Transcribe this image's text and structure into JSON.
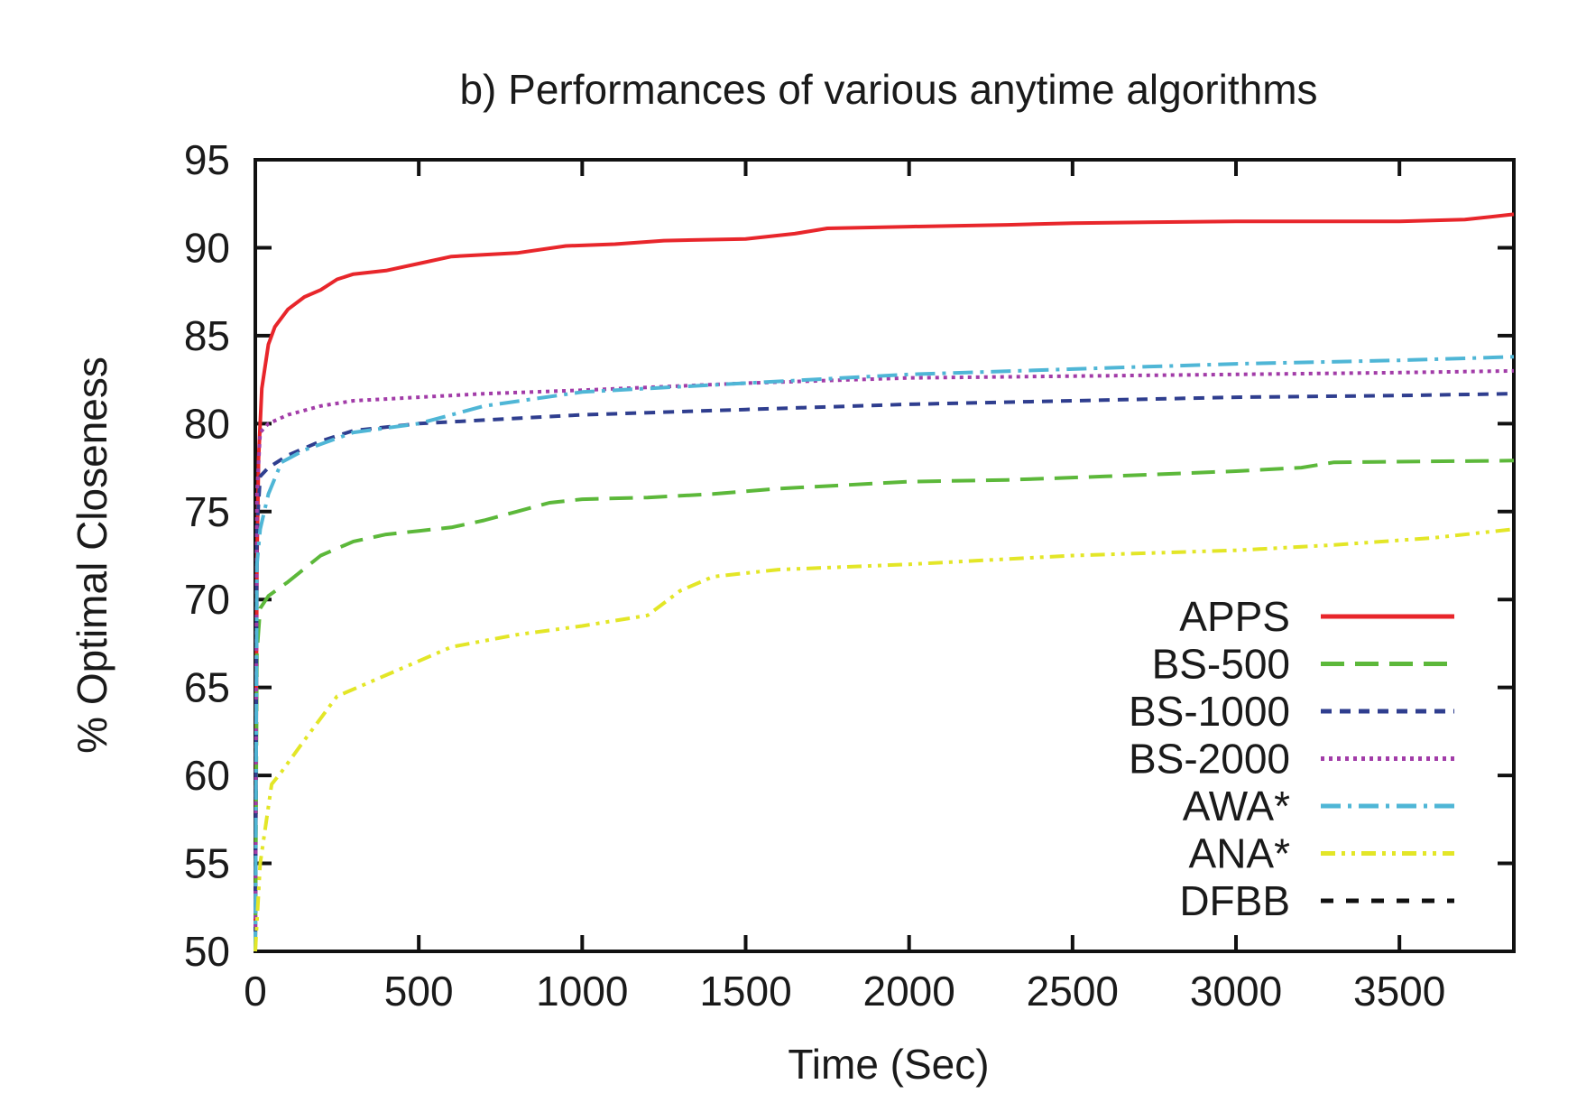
{
  "chart_data": {
    "type": "line",
    "title": "b) Performances of various anytime algorithms",
    "xlabel": "Time (Sec)",
    "ylabel": "% Optimal Closeness",
    "xlim": [
      0,
      3850
    ],
    "ylim": [
      50,
      95
    ],
    "xticks": [
      0,
      500,
      1000,
      1500,
      2000,
      2500,
      3000,
      3500
    ],
    "yticks": [
      50,
      55,
      60,
      65,
      70,
      75,
      80,
      85,
      90,
      95
    ],
    "xtick_labels": [
      "0",
      "500",
      "1000",
      "1500",
      "2000",
      "2500",
      "3000",
      "3500"
    ],
    "ytick_labels": [
      "50",
      "55",
      "60",
      "65",
      "70",
      "75",
      "80",
      "85",
      "90",
      "95"
    ],
    "grid": false,
    "legend_position": "bottom-right",
    "series": [
      {
        "name": "APPS",
        "color": "#e8262b",
        "style": "solid",
        "points": [
          [
            0,
            50
          ],
          [
            5,
            72
          ],
          [
            10,
            78
          ],
          [
            20,
            82
          ],
          [
            40,
            84.5
          ],
          [
            60,
            85.5
          ],
          [
            100,
            86.5
          ],
          [
            150,
            87.2
          ],
          [
            200,
            87.6
          ],
          [
            250,
            88.2
          ],
          [
            300,
            88.5
          ],
          [
            400,
            88.7
          ],
          [
            500,
            89.1
          ],
          [
            600,
            89.5
          ],
          [
            800,
            89.7
          ],
          [
            950,
            90.1
          ],
          [
            1100,
            90.2
          ],
          [
            1250,
            90.4
          ],
          [
            1500,
            90.5
          ],
          [
            1650,
            90.8
          ],
          [
            1750,
            91.1
          ],
          [
            2000,
            91.2
          ],
          [
            2300,
            91.3
          ],
          [
            2500,
            91.4
          ],
          [
            3000,
            91.5
          ],
          [
            3500,
            91.5
          ],
          [
            3700,
            91.6
          ],
          [
            3850,
            91.9
          ]
        ]
      },
      {
        "name": "BS-500",
        "color": "#5cb83a",
        "style": "long-dash",
        "points": [
          [
            0,
            50
          ],
          [
            5,
            67
          ],
          [
            15,
            69.5
          ],
          [
            40,
            70.2
          ],
          [
            100,
            71
          ],
          [
            200,
            72.5
          ],
          [
            300,
            73.3
          ],
          [
            400,
            73.7
          ],
          [
            500,
            73.9
          ],
          [
            600,
            74.1
          ],
          [
            700,
            74.5
          ],
          [
            800,
            75
          ],
          [
            900,
            75.5
          ],
          [
            1000,
            75.7
          ],
          [
            1200,
            75.8
          ],
          [
            1400,
            76
          ],
          [
            1600,
            76.3
          ],
          [
            1800,
            76.5
          ],
          [
            2000,
            76.7
          ],
          [
            2300,
            76.8
          ],
          [
            2600,
            77
          ],
          [
            3000,
            77.3
          ],
          [
            3200,
            77.5
          ],
          [
            3300,
            77.8
          ],
          [
            3850,
            77.9
          ]
        ]
      },
      {
        "name": "BS-1000",
        "color": "#2f3e8f",
        "style": "short-dash",
        "points": [
          [
            0,
            50
          ],
          [
            5,
            74
          ],
          [
            15,
            77
          ],
          [
            40,
            77.5
          ],
          [
            100,
            78.2
          ],
          [
            200,
            79
          ],
          [
            300,
            79.6
          ],
          [
            500,
            80
          ],
          [
            700,
            80.2
          ],
          [
            1000,
            80.5
          ],
          [
            1500,
            80.8
          ],
          [
            2000,
            81.1
          ],
          [
            2500,
            81.3
          ],
          [
            3000,
            81.5
          ],
          [
            3500,
            81.6
          ],
          [
            3850,
            81.7
          ]
        ]
      },
      {
        "name": "BS-2000",
        "color": "#a23ca8",
        "style": "dotted",
        "points": [
          [
            0,
            50
          ],
          [
            5,
            76
          ],
          [
            15,
            79.5
          ],
          [
            40,
            80
          ],
          [
            100,
            80.5
          ],
          [
            200,
            81
          ],
          [
            300,
            81.3
          ],
          [
            500,
            81.5
          ],
          [
            700,
            81.7
          ],
          [
            1000,
            81.9
          ],
          [
            1500,
            82.3
          ],
          [
            2000,
            82.6
          ],
          [
            2500,
            82.7
          ],
          [
            3000,
            82.8
          ],
          [
            3500,
            82.9
          ],
          [
            3850,
            83
          ]
        ]
      },
      {
        "name": "AWA*",
        "color": "#4fb6d6",
        "style": "dash-dot",
        "points": [
          [
            0,
            50
          ],
          [
            5,
            72
          ],
          [
            15,
            74
          ],
          [
            40,
            76
          ],
          [
            80,
            77.8
          ],
          [
            150,
            78.5
          ],
          [
            300,
            79.5
          ],
          [
            500,
            80
          ],
          [
            700,
            81
          ],
          [
            1000,
            81.8
          ],
          [
            1500,
            82.3
          ],
          [
            2000,
            82.8
          ],
          [
            2500,
            83.1
          ],
          [
            3000,
            83.4
          ],
          [
            3500,
            83.6
          ],
          [
            3850,
            83.8
          ]
        ]
      },
      {
        "name": "ANA*",
        "color": "#e3e627",
        "style": "dash-dot-dot",
        "points": [
          [
            0,
            50
          ],
          [
            15,
            55
          ],
          [
            50,
            59.5
          ],
          [
            80,
            60.2
          ],
          [
            150,
            62
          ],
          [
            250,
            64.5
          ],
          [
            400,
            65.7
          ],
          [
            600,
            67.3
          ],
          [
            800,
            68
          ],
          [
            1000,
            68.5
          ],
          [
            1200,
            69.1
          ],
          [
            1300,
            70.5
          ],
          [
            1400,
            71.3
          ],
          [
            1600,
            71.7
          ],
          [
            2000,
            72
          ],
          [
            2500,
            72.5
          ],
          [
            3000,
            72.8
          ],
          [
            3300,
            73.1
          ],
          [
            3600,
            73.5
          ],
          [
            3850,
            74
          ]
        ]
      },
      {
        "name": "DFBB",
        "color": "#111111",
        "style": "dashed",
        "points": []
      }
    ]
  }
}
